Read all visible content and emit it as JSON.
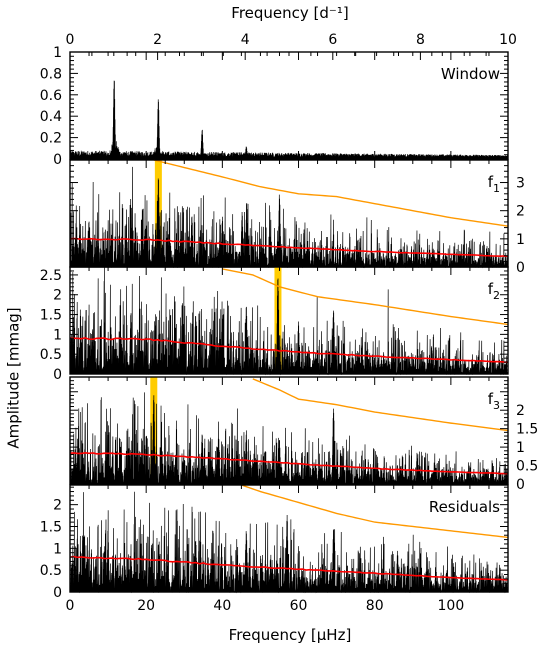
{
  "chart_data": {
    "type": "line",
    "figure": "stacked amplitude spectra",
    "top_axis": {
      "label": "Frequency [d⁻¹]",
      "range": [
        0,
        10
      ],
      "ticks": [
        0,
        2,
        4,
        6,
        8,
        10
      ]
    },
    "bottom_axis": {
      "label": "Frequency [μHz]",
      "range": [
        0,
        115
      ],
      "ticks": [
        0,
        20,
        40,
        60,
        80,
        100
      ]
    },
    "ylabel": "Amplitude [mmag]",
    "colors": {
      "spectrum": "#000000",
      "noise_level": "#ff0000",
      "significance_threshold": "#ff9900",
      "highlight": "#ffcc00",
      "background": "#ffffff"
    },
    "panels": [
      {
        "name": "Window",
        "label": "Window",
        "label_sub": "",
        "y_axis_side": "left",
        "ylim": [
          0,
          1.0
        ],
        "yticks": [
          0,
          0.2,
          0.4,
          0.6,
          0.8,
          1
        ],
        "ytick_labels": [
          "0",
          "0.2",
          "0.4",
          "0.6",
          "0.8",
          "1"
        ],
        "noise_level": [],
        "threshold": [],
        "highlight_x": null,
        "peaks": [
          [
            11.6,
            0.77
          ],
          [
            23.2,
            0.58
          ],
          [
            34.7,
            0.29
          ],
          [
            46.3,
            0.12
          ]
        ]
      },
      {
        "name": "f1",
        "label": "f",
        "label_sub": "1",
        "y_axis_side": "right",
        "ylim": [
          0,
          3.8
        ],
        "yticks": [
          0,
          1,
          2,
          3
        ],
        "ytick_labels": [
          "0",
          "1",
          "2",
          "3"
        ],
        "noise_level": [
          [
            0,
            1.0
          ],
          [
            20,
            0.97
          ],
          [
            40,
            0.83
          ],
          [
            60,
            0.68
          ],
          [
            80,
            0.55
          ],
          [
            100,
            0.45
          ],
          [
            115,
            0.38
          ]
        ],
        "threshold": [
          [
            22,
            3.8
          ],
          [
            40,
            3.2
          ],
          [
            50,
            2.85
          ],
          [
            60,
            2.6
          ],
          [
            70,
            2.5
          ],
          [
            80,
            2.25
          ],
          [
            100,
            1.75
          ],
          [
            115,
            1.45
          ]
        ],
        "highlight_x": 23.2,
        "peaks": [
          [
            23.2,
            3.2
          ],
          [
            46.4,
            2.4
          ],
          [
            55.0,
            2.65
          ],
          [
            45.2,
            2.0
          ],
          [
            32.0,
            1.9
          ],
          [
            19.0,
            2.1
          ],
          [
            5.0,
            1.7
          ],
          [
            40.0,
            1.8
          ]
        ]
      },
      {
        "name": "f2",
        "label": "f",
        "label_sub": "2",
        "y_axis_side": "left",
        "ylim": [
          0,
          2.7
        ],
        "yticks": [
          0,
          0.5,
          1,
          1.5,
          2,
          2.5
        ],
        "ytick_labels": [
          "0",
          "0.5",
          "1",
          "1.5",
          "2",
          "2.5"
        ],
        "noise_level": [
          [
            0,
            0.9
          ],
          [
            20,
            0.88
          ],
          [
            40,
            0.7
          ],
          [
            60,
            0.55
          ],
          [
            80,
            0.45
          ],
          [
            100,
            0.36
          ],
          [
            115,
            0.3
          ]
        ],
        "threshold": [
          [
            40,
            2.65
          ],
          [
            48,
            2.5
          ],
          [
            55,
            2.2
          ],
          [
            65,
            1.95
          ],
          [
            80,
            1.75
          ],
          [
            100,
            1.45
          ],
          [
            115,
            1.25
          ]
        ],
        "highlight_x": 54.6,
        "peaks": [
          [
            54.6,
            2.55
          ],
          [
            69.2,
            1.7
          ],
          [
            46.3,
            1.8
          ],
          [
            40.0,
            1.55
          ],
          [
            16.0,
            1.6
          ],
          [
            33.0,
            1.55
          ],
          [
            60.0,
            1.35
          ]
        ]
      },
      {
        "name": "f3",
        "label": "f",
        "label_sub": "3",
        "y_axis_side": "right",
        "ylim": [
          0,
          2.9
        ],
        "yticks": [
          0,
          0.5,
          1,
          1.5,
          2
        ],
        "ytick_labels": [
          "0",
          "0.5",
          "1",
          "1.5",
          "2"
        ],
        "noise_level": [
          [
            0,
            0.85
          ],
          [
            20,
            0.8
          ],
          [
            40,
            0.68
          ],
          [
            60,
            0.55
          ],
          [
            80,
            0.42
          ],
          [
            100,
            0.33
          ],
          [
            115,
            0.28
          ]
        ],
        "threshold": [
          [
            48,
            2.85
          ],
          [
            55,
            2.55
          ],
          [
            60,
            2.3
          ],
          [
            70,
            2.15
          ],
          [
            80,
            1.95
          ],
          [
            100,
            1.65
          ],
          [
            115,
            1.45
          ]
        ],
        "highlight_x": 22.0,
        "peaks": [
          [
            22.0,
            2.55
          ],
          [
            69.2,
            2.15
          ],
          [
            46.3,
            1.5
          ],
          [
            34.7,
            1.4
          ],
          [
            10.0,
            1.45
          ],
          [
            55.0,
            1.25
          ],
          [
            39.0,
            1.3
          ]
        ]
      },
      {
        "name": "Residuals",
        "label": "Residuals",
        "label_sub": "",
        "y_axis_side": "left",
        "ylim": [
          0,
          2.45
        ],
        "yticks": [
          0,
          0.5,
          1,
          1.5,
          2
        ],
        "ytick_labels": [
          "0",
          "0.5",
          "1",
          "1.5",
          "2"
        ],
        "noise_level": [
          [
            0,
            0.8
          ],
          [
            20,
            0.75
          ],
          [
            40,
            0.62
          ],
          [
            60,
            0.52
          ],
          [
            80,
            0.43
          ],
          [
            100,
            0.33
          ],
          [
            115,
            0.28
          ]
        ],
        "threshold": [
          [
            45,
            2.45
          ],
          [
            50,
            2.3
          ],
          [
            60,
            2.05
          ],
          [
            70,
            1.8
          ],
          [
            80,
            1.6
          ],
          [
            100,
            1.4
          ],
          [
            115,
            1.25
          ]
        ],
        "highlight_x": null,
        "peaks": [
          [
            57.0,
            1.85
          ],
          [
            69.2,
            1.5
          ],
          [
            46.3,
            1.45
          ],
          [
            10.0,
            1.3
          ],
          [
            33.0,
            1.25
          ],
          [
            86.0,
            0.95
          ]
        ]
      }
    ]
  }
}
